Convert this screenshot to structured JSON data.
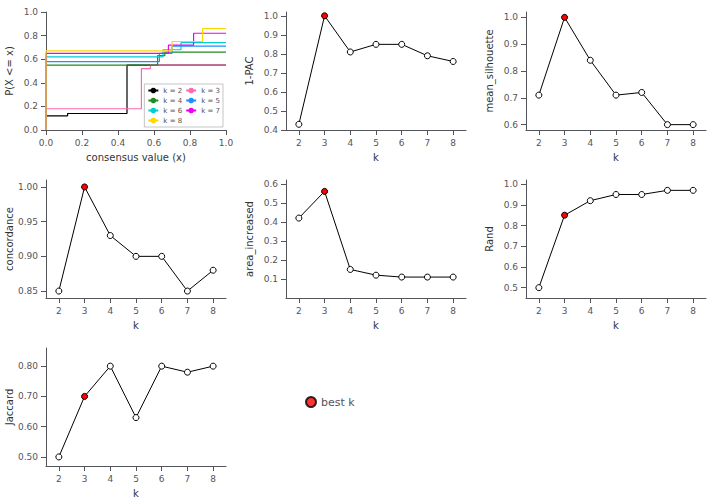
{
  "chart_data": [
    {
      "type": "step",
      "xlabel": "consensus value (x)",
      "ylabel": "P(X <= x)",
      "series": [
        {
          "name": "k = 2",
          "color": "#000000",
          "x": [
            0.0,
            0.0,
            0.12,
            0.12,
            0.45,
            0.45,
            1.0,
            1.0
          ],
          "values": [
            0.0,
            0.12,
            0.12,
            0.14,
            0.14,
            0.55,
            0.55,
            0.55
          ]
        },
        {
          "name": "k = 3",
          "color": "#FF69B4",
          "x": [
            0.0,
            0.0,
            0.53,
            0.53,
            0.58,
            0.58,
            1.0,
            1.0
          ],
          "values": [
            0.0,
            0.18,
            0.18,
            0.52,
            0.52,
            0.55,
            0.55,
            0.55
          ]
        },
        {
          "name": "k = 4",
          "color": "#228B22",
          "x": [
            0.0,
            0.0,
            0.62,
            0.62,
            0.66,
            0.66,
            1.0,
            1.0
          ],
          "values": [
            0.0,
            0.55,
            0.55,
            0.63,
            0.63,
            0.66,
            0.66,
            0.66
          ]
        },
        {
          "name": "k = 5",
          "color": "#1E90FF",
          "x": [
            0.0,
            0.0,
            0.63,
            0.63,
            0.7,
            0.7,
            1.0,
            1.0
          ],
          "values": [
            0.0,
            0.58,
            0.58,
            0.65,
            0.65,
            0.71,
            0.71,
            0.71
          ]
        },
        {
          "name": "k = 6",
          "color": "#00CED1",
          "x": [
            0.0,
            0.0,
            0.65,
            0.65,
            0.75,
            0.75,
            1.0,
            1.0
          ],
          "values": [
            0.0,
            0.62,
            0.62,
            0.68,
            0.68,
            0.74,
            0.74,
            0.74
          ]
        },
        {
          "name": "k = 7",
          "color": "#EE00EE",
          "x": [
            0.0,
            0.0,
            0.68,
            0.68,
            0.82,
            0.82,
            1.0,
            1.0
          ],
          "values": [
            0.0,
            0.65,
            0.65,
            0.72,
            0.72,
            0.82,
            0.82,
            0.82
          ]
        },
        {
          "name": "k = 8",
          "color": "#FFD700",
          "x": [
            0.0,
            0.0,
            0.7,
            0.7,
            0.87,
            0.87,
            1.0,
            1.0
          ],
          "values": [
            0.0,
            0.67,
            0.67,
            0.75,
            0.75,
            0.86,
            0.86,
            0.86
          ]
        }
      ],
      "xlim": [
        0,
        1
      ],
      "xticks": [
        {
          "value": 0,
          "label": "0.0"
        },
        0.2,
        0.4,
        0.6,
        0.8,
        {
          "value": 1,
          "label": "1.0"
        }
      ],
      "ylim": [
        0,
        1
      ],
      "yticks": [
        {
          "value": 0,
          "label": "0.0"
        },
        0.2,
        0.4,
        0.6,
        0.8,
        {
          "value": 1,
          "label": "1.0"
        }
      ],
      "legend": "lower right",
      "grid": false
    },
    {
      "type": "line",
      "xlabel": "k",
      "ylabel": "1-PAC",
      "x": [
        2,
        3,
        4,
        5,
        6,
        7,
        8
      ],
      "values": [
        0.43,
        1.0,
        0.81,
        0.85,
        0.85,
        0.79,
        0.76
      ],
      "color": "#000000",
      "colors": [
        "#FFFFFF",
        "#FF0000",
        "#FFFFFF",
        "#FFFFFF",
        "#FFFFFF",
        "#FFFFFF",
        "#FFFFFF"
      ],
      "marker": "circle",
      "xlim": [
        1.5,
        8.5
      ],
      "xticks": [
        2,
        3,
        4,
        5,
        6,
        7,
        8
      ],
      "ylim": [
        0.4,
        1.02
      ],
      "yticks": [
        0.4,
        0.5,
        0.6,
        0.7,
        0.8,
        0.9,
        {
          "value": 1.0,
          "label": "1.0"
        }
      ],
      "grid": false
    },
    {
      "type": "line",
      "xlabel": "k",
      "ylabel": "mean_silhouette",
      "x": [
        2,
        3,
        4,
        5,
        6,
        7,
        8
      ],
      "values": [
        0.71,
        1.0,
        0.84,
        0.71,
        0.72,
        0.6,
        0.6
      ],
      "color": "#000000",
      "colors": [
        "#FFFFFF",
        "#FF0000",
        "#FFFFFF",
        "#FFFFFF",
        "#FFFFFF",
        "#FFFFFF",
        "#FFFFFF"
      ],
      "marker": "circle",
      "xlim": [
        1.5,
        8.5
      ],
      "xticks": [
        2,
        3,
        4,
        5,
        6,
        7,
        8
      ],
      "ylim": [
        0.58,
        1.02
      ],
      "yticks": [
        0.6,
        0.7,
        0.8,
        0.9,
        {
          "value": 1.0,
          "label": "1.0"
        }
      ],
      "grid": false
    },
    {
      "type": "line",
      "xlabel": "k",
      "ylabel": "concordance",
      "x": [
        2,
        3,
        4,
        5,
        6,
        7,
        8
      ],
      "values": [
        0.85,
        1.0,
        0.93,
        0.9,
        0.9,
        0.85,
        0.88
      ],
      "color": "#000000",
      "colors": [
        "#FFFFFF",
        "#FF0000",
        "#FFFFFF",
        "#FFFFFF",
        "#FFFFFF",
        "#FFFFFF",
        "#FFFFFF"
      ],
      "marker": "circle",
      "xlim": [
        1.5,
        8.5
      ],
      "xticks": [
        2,
        3,
        4,
        5,
        6,
        7,
        8
      ],
      "ylim": [
        0.84,
        1.01
      ],
      "yticks": [
        0.85,
        {
          "value": 0.9,
          "label": "0.90"
        },
        0.95,
        {
          "value": 1.0,
          "label": "1.00"
        }
      ],
      "grid": false
    },
    {
      "type": "line",
      "xlabel": "k",
      "ylabel": "area_increased",
      "x": [
        2,
        3,
        4,
        5,
        6,
        7,
        8
      ],
      "values": [
        0.42,
        0.56,
        0.15,
        0.12,
        0.11,
        0.11,
        0.11
      ],
      "color": "#000000",
      "colors": [
        "#FFFFFF",
        "#FF0000",
        "#FFFFFF",
        "#FFFFFF",
        "#FFFFFF",
        "#FFFFFF",
        "#FFFFFF"
      ],
      "marker": "circle",
      "xlim": [
        1.5,
        8.5
      ],
      "xticks": [
        2,
        3,
        4,
        5,
        6,
        7,
        8
      ],
      "ylim": [
        0.0,
        0.62
      ],
      "yticks": [
        0.1,
        0.2,
        0.3,
        0.4,
        0.5,
        0.6
      ],
      "grid": false
    },
    {
      "type": "line",
      "xlabel": "k",
      "ylabel": "Rand",
      "x": [
        2,
        3,
        4,
        5,
        6,
        7,
        8
      ],
      "values": [
        0.5,
        0.85,
        0.92,
        0.95,
        0.95,
        0.97,
        0.97
      ],
      "color": "#000000",
      "colors": [
        "#FFFFFF",
        "#FF0000",
        "#FFFFFF",
        "#FFFFFF",
        "#FFFFFF",
        "#FFFFFF",
        "#FFFFFF"
      ],
      "marker": "circle",
      "xlim": [
        1.5,
        8.5
      ],
      "xticks": [
        2,
        3,
        4,
        5,
        6,
        7,
        8
      ],
      "ylim": [
        0.45,
        1.02
      ],
      "yticks": [
        0.5,
        0.6,
        0.7,
        0.8,
        0.9,
        {
          "value": 1.0,
          "label": "1.0"
        }
      ],
      "grid": false
    },
    {
      "type": "line",
      "xlabel": "k",
      "ylabel": "Jaccard",
      "x": [
        2,
        3,
        4,
        5,
        6,
        7,
        8
      ],
      "values": [
        0.5,
        0.7,
        0.8,
        0.63,
        0.8,
        0.78,
        0.8
      ],
      "color": "#000000",
      "colors": [
        "#FFFFFF",
        "#FF0000",
        "#FFFFFF",
        "#FFFFFF",
        "#FFFFFF",
        "#FFFFFF",
        "#FFFFFF"
      ],
      "marker": "circle",
      "xlim": [
        1.5,
        8.5
      ],
      "xticks": [
        2,
        3,
        4,
        5,
        6,
        7,
        8
      ],
      "ylim": [
        0.47,
        0.86
      ],
      "yticks": [
        {
          "value": 0.5,
          "label": "0.50"
        },
        {
          "value": 0.6,
          "label": "0.60"
        },
        {
          "value": 0.7,
          "label": "0.70"
        },
        {
          "value": 0.8,
          "label": "0.80"
        }
      ],
      "grid": false
    },
    {
      "type": "legend",
      "legend": "center",
      "series": [
        {
          "name": "best k",
          "color": "#FF0000",
          "marker": "circle"
        }
      ]
    }
  ]
}
